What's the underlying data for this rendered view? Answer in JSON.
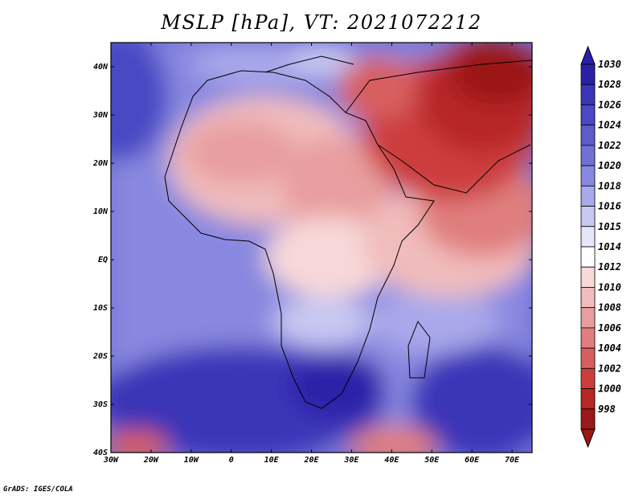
{
  "title": "MSLP [hPa], VT: 2021072212",
  "credit": "GrADS: IGES/COLA",
  "map": {
    "lon_range": [
      -30,
      75
    ],
    "lat_range": [
      -40,
      45
    ],
    "x_ticks": [
      "30W",
      "20W",
      "10W",
      "0",
      "10E",
      "20E",
      "30E",
      "40E",
      "50E",
      "60E",
      "70E"
    ],
    "y_ticks": [
      "40N",
      "30N",
      "20N",
      "10N",
      "EQ",
      "10S",
      "20S",
      "30S",
      "40S"
    ]
  },
  "colorbar": {
    "labels": [
      "1030",
      "1028",
      "1026",
      "1024",
      "1022",
      "1020",
      "1018",
      "1016",
      "1015",
      "1014",
      "1012",
      "1010",
      "1008",
      "1006",
      "1004",
      "1002",
      "1000",
      "998"
    ],
    "colors": [
      "#2a20a8",
      "#3a34b8",
      "#4a48c4",
      "#5c5ccc",
      "#7070d6",
      "#8888e0",
      "#a8a8ea",
      "#c8c8f2",
      "#e6e6fa",
      "#ffffff",
      "#f8d8d8",
      "#f0bcbc",
      "#e89e9e",
      "#e07e7e",
      "#d85e5e",
      "#cc3e3e",
      "#b82626",
      "#9c1818"
    ]
  }
}
